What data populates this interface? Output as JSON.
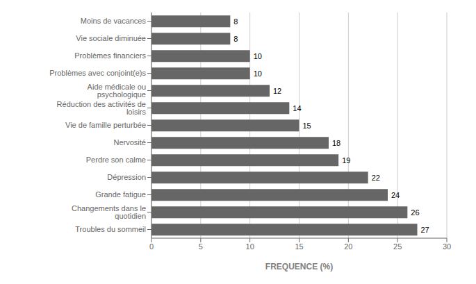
{
  "chart_data": {
    "type": "bar",
    "orientation": "horizontal",
    "categories": [
      "Troubles du sommeil",
      "Changements dans le quotidien",
      "Grande fatigue",
      "Dépression",
      "Perdre son calme",
      "Nervosité",
      "Vie de famille perturbée",
      "Réduction des activités de loisirs",
      "Aide médicale ou psychologique",
      "Problèmes avec conjoint(e)s",
      "Problèmes financiers",
      "Vie sociale diminuée",
      "Moins de vacances"
    ],
    "values": [
      27,
      26,
      24,
      22,
      19,
      18,
      15,
      14,
      12,
      10,
      10,
      8,
      8
    ],
    "color": "#666666",
    "xlabel": "FREQUENCE (%)",
    "xlim": [
      0,
      30
    ],
    "xticks": [
      0,
      5,
      10,
      15,
      20,
      25,
      30
    ],
    "grid": true,
    "data_labels": true
  }
}
